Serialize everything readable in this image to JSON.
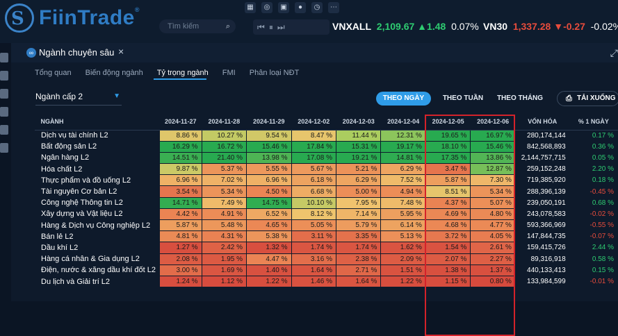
{
  "brand": {
    "name": "FiinTrade",
    "trademark": "®"
  },
  "toolbar_icons": [
    "grid-icon",
    "chart-search-icon",
    "gift-icon",
    "globe-icon",
    "clock-icon",
    "more-icon"
  ],
  "search": {
    "placeholder": "Tìm kiếm"
  },
  "indices": [
    {
      "name": "VNXALL",
      "value": "2,109.67",
      "change": "1.48",
      "direction": "up",
      "pct": "0.07%"
    },
    {
      "name": "VN30",
      "value": "1,337.28",
      "change": "-0.27",
      "direction": "down",
      "pct": "-0.02%"
    }
  ],
  "panel": {
    "title": "Ngành chuyên sâu",
    "close": "×"
  },
  "tabs": [
    "Tổng quan",
    "Biến động ngành",
    "Tỷ trọng ngành",
    "FMI",
    "Phân loại NĐT"
  ],
  "active_tab": "Tỷ trọng ngành",
  "level_select": {
    "value": "Ngành cấp 2"
  },
  "modes": [
    "THEO NGÀY",
    "THEO TUẦN",
    "THEO THÁNG"
  ],
  "active_mode": "THEO NGÀY",
  "download_label": "TẢI XUỐNG",
  "colors": {
    "accent": "#2f9ce8",
    "highlight_box": "#d4222a",
    "positive": "#2ecc71",
    "negative": "#e74c3c"
  },
  "table": {
    "headers": {
      "name": "NGÀNH",
      "cap": "VỐN HÓA",
      "chg": "% 1 NGÀY"
    },
    "dates": [
      "2024-11-27",
      "2024-11-28",
      "2024-11-29",
      "2024-12-02",
      "2024-12-03",
      "2024-12-04",
      "2024-12-05",
      "2024-12-06"
    ],
    "rows": [
      {
        "name": "Dịch vụ tài chính L2",
        "values": [
          "8.86 %",
          "10.27 %",
          "9.54 %",
          "8.47 %",
          "11.44 %",
          "12.31 %",
          "19.65 %",
          "16.97 %"
        ],
        "cap": "280,174,144",
        "chg": "0.17 %"
      },
      {
        "name": "Bất động sản L2",
        "values": [
          "16.29 %",
          "16.72 %",
          "15.46 %",
          "17.84 %",
          "15.31 %",
          "19.17 %",
          "18.10 %",
          "15.46 %"
        ],
        "cap": "842,568,893",
        "chg": "0.36 %"
      },
      {
        "name": "Ngân hàng L2",
        "values": [
          "14.51 %",
          "21.40 %",
          "13.98 %",
          "17.08 %",
          "19.21 %",
          "14.81 %",
          "17.35 %",
          "13.86 %"
        ],
        "cap": "2,144,757,715",
        "chg": "0.05 %"
      },
      {
        "name": "Hóa chất L2",
        "values": [
          "9.87 %",
          "5.37 %",
          "5.55 %",
          "5.67 %",
          "5.21 %",
          "6.29 %",
          "3.47 %",
          "12.87 %"
        ],
        "cap": "259,152,248",
        "chg": "2.20 %"
      },
      {
        "name": "Thực phẩm và đồ uống L2",
        "values": [
          "6.96 %",
          "7.02 %",
          "6.96 %",
          "6.18 %",
          "6.29 %",
          "7.52 %",
          "5.87 %",
          "7.30 %"
        ],
        "cap": "719,385,920",
        "chg": "0.18 %"
      },
      {
        "name": "Tài nguyên Cơ bản L2",
        "values": [
          "3.54 %",
          "5.34 %",
          "4.50 %",
          "6.68 %",
          "5.00 %",
          "4.94 %",
          "8.51 %",
          "5.34 %"
        ],
        "cap": "288,396,139",
        "chg": "-0.45 %"
      },
      {
        "name": "Công nghệ Thông tin L2",
        "values": [
          "14.71 %",
          "7.49 %",
          "14.75 %",
          "10.10 %",
          "7.95 %",
          "7.48 %",
          "4.37 %",
          "5.07 %"
        ],
        "cap": "239,050,191",
        "chg": "0.68 %"
      },
      {
        "name": "Xây dựng và Vật liệu L2",
        "values": [
          "4.42 %",
          "4.91 %",
          "6.52 %",
          "8.12 %",
          "7.14 %",
          "5.95 %",
          "4.69 %",
          "4.80 %"
        ],
        "cap": "243,078,583",
        "chg": "-0.02 %"
      },
      {
        "name": "Hàng & Dịch vụ Công nghiệp L2",
        "values": [
          "5.87 %",
          "5.48 %",
          "4.65 %",
          "5.05 %",
          "5.79 %",
          "6.14 %",
          "4.68 %",
          "4.77 %"
        ],
        "cap": "593,366,969",
        "chg": "-0.55 %"
      },
      {
        "name": "Bán lẻ L2",
        "values": [
          "4.81 %",
          "4.31 %",
          "5.38 %",
          "3.11 %",
          "3.35 %",
          "5.13 %",
          "3.72 %",
          "4.05 %"
        ],
        "cap": "147,844,735",
        "chg": "-0.07 %"
      },
      {
        "name": "Dầu khí L2",
        "values": [
          "1.27 %",
          "2.42 %",
          "1.32 %",
          "1.74 %",
          "1.74 %",
          "1.62 %",
          "1.54 %",
          "2.61 %"
        ],
        "cap": "159,415,726",
        "chg": "2.44 %"
      },
      {
        "name": "Hàng cá nhân & Gia dụng L2",
        "values": [
          "2.08 %",
          "1.95 %",
          "4.47 %",
          "3.16 %",
          "2.38 %",
          "2.09 %",
          "2.07 %",
          "2.27 %"
        ],
        "cap": "89,316,918",
        "chg": "0.58 %"
      },
      {
        "name": "Điện, nước & xăng dầu khí đốt L2",
        "values": [
          "3.00 %",
          "1.69 %",
          "1.40 %",
          "1.64 %",
          "2.71 %",
          "1.51 %",
          "1.38 %",
          "1.37 %"
        ],
        "cap": "440,133,413",
        "chg": "0.15 %"
      },
      {
        "name": "Du lịch và Giải trí L2",
        "values": [
          "1.24 %",
          "1.12 %",
          "1.22 %",
          "1.46 %",
          "1.64 %",
          "1.22 %",
          "1.15 %",
          "0.80 %"
        ],
        "cap": "133,984,599",
        "chg": "-0.01 %"
      }
    ]
  }
}
